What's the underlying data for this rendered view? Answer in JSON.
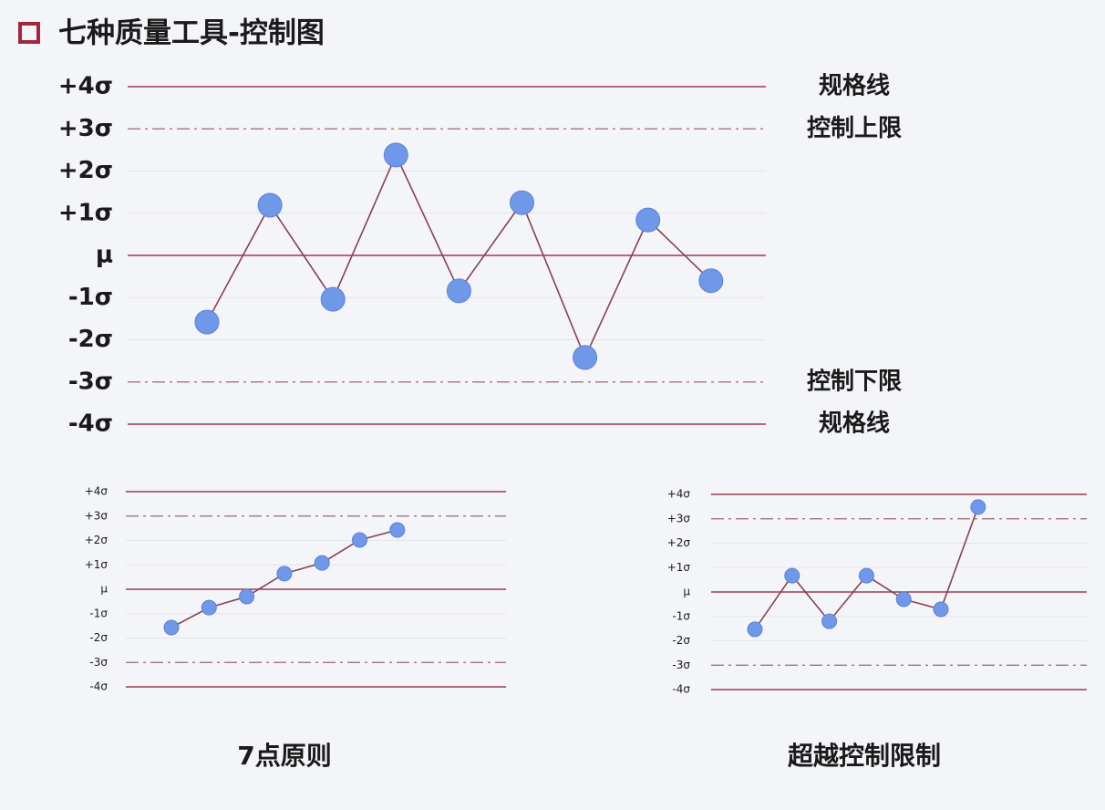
{
  "title": "七种质量工具-控制图",
  "chart_data": [
    {
      "type": "line",
      "color": "#6f98e8",
      "line_color": "#8a3f55",
      "values": [
        -1.58,
        1.19,
        -1.04,
        2.38,
        -0.84,
        1.25,
        -2.42,
        0.84,
        -0.6
      ],
      "ylim": [
        -4,
        4
      ],
      "yticks": [
        {
          "value": 4,
          "label": "+4σ"
        },
        {
          "value": 3,
          "label": "+3σ"
        },
        {
          "value": 2,
          "label": "+2σ"
        },
        {
          "value": 1,
          "label": "+1σ"
        },
        {
          "value": 0,
          "label": "μ"
        },
        {
          "value": -1,
          "label": "-1σ"
        },
        {
          "value": -2,
          "label": "-2σ"
        },
        {
          "value": -3,
          "label": "-3σ"
        },
        {
          "value": -4,
          "label": "-4σ"
        }
      ],
      "annotations": [
        {
          "label": "规格线",
          "y": 4
        },
        {
          "label": "控制上限",
          "y": 3
        },
        {
          "label": "控制下限",
          "y": -3
        },
        {
          "label": "规格线",
          "y": -4
        }
      ]
    },
    {
      "type": "line",
      "title": "7点原则",
      "color": "#6f98e8",
      "line_color": "#8a3f55",
      "values": [
        -1.57,
        -0.75,
        -0.3,
        0.64,
        1.08,
        2.02,
        2.43
      ],
      "ylim": [
        -4,
        4
      ],
      "yticks": [
        {
          "value": 4,
          "label": "+4σ"
        },
        {
          "value": 3,
          "label": "+3σ"
        },
        {
          "value": 2,
          "label": "+2σ"
        },
        {
          "value": 1,
          "label": "+1σ"
        },
        {
          "value": 0,
          "label": "μ"
        },
        {
          "value": -1,
          "label": "-1σ"
        },
        {
          "value": -2,
          "label": "-2σ"
        },
        {
          "value": -3,
          "label": "-3σ"
        },
        {
          "value": -4,
          "label": "-4σ"
        }
      ]
    },
    {
      "type": "line",
      "title": "超越控制限制",
      "color": "#6f98e8",
      "line_color": "#8a3f55",
      "values": [
        -1.53,
        0.67,
        -1.2,
        0.67,
        -0.3,
        -0.71,
        3.48
      ],
      "ylim": [
        -4,
        4
      ],
      "yticks": [
        {
          "value": 4,
          "label": "+4σ"
        },
        {
          "value": 3,
          "label": "+3σ"
        },
        {
          "value": 2,
          "label": "+2σ"
        },
        {
          "value": 1,
          "label": "+1σ"
        },
        {
          "value": 0,
          "label": "μ"
        },
        {
          "value": -1,
          "label": "-1σ"
        },
        {
          "value": -2,
          "label": "-2σ"
        },
        {
          "value": -3,
          "label": "-3σ"
        },
        {
          "value": -4,
          "label": "-4σ"
        }
      ]
    }
  ]
}
